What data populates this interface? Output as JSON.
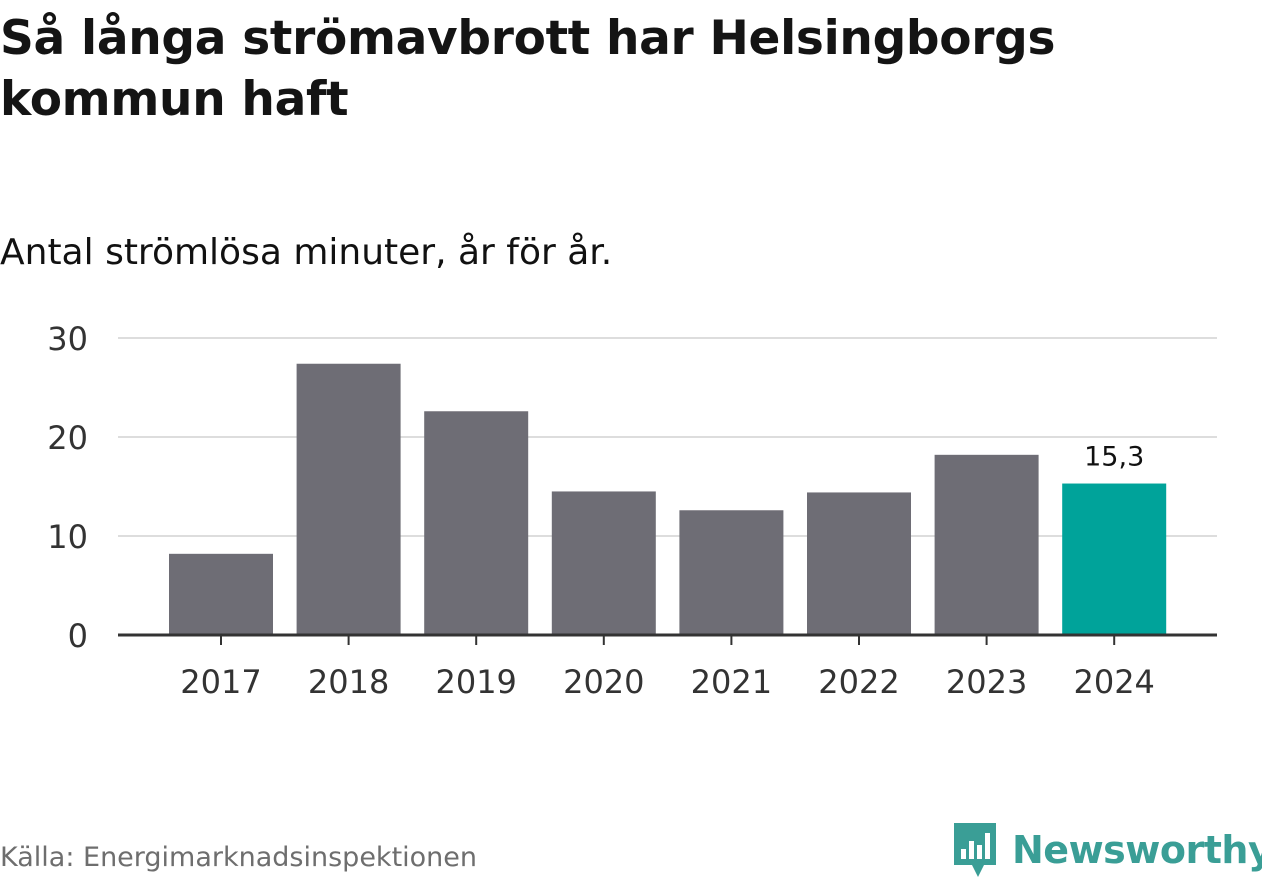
{
  "title": "Så långa strömavbrott har Helsingborgs kommun haft",
  "subtitle": "Antal strömlösa minuter, år för år.",
  "source": "Källa: Energimarknadsinspektionen",
  "brand": {
    "name": "Newsworthy",
    "icon": "bar-chart-speech-bubble-icon",
    "color": "#3a9e96"
  },
  "colors": {
    "bar": "#6e6d75",
    "highlight": "#00a39a",
    "grid": "#dddddd",
    "axis": "#333333"
  },
  "chart_data": {
    "type": "bar",
    "title": "Så långa strömavbrott har Helsingborgs kommun haft",
    "subtitle": "Antal strömlösa minuter, år för år.",
    "xlabel": "",
    "ylabel": "",
    "categories": [
      "2017",
      "2018",
      "2019",
      "2020",
      "2021",
      "2022",
      "2023",
      "2024"
    ],
    "values": [
      8.2,
      27.4,
      22.6,
      14.5,
      12.6,
      14.4,
      18.2,
      15.3
    ],
    "highlight_index": 7,
    "data_labels": [
      {
        "index": 7,
        "text": "15,3"
      }
    ],
    "ylim": [
      0,
      30
    ],
    "yticks": [
      0,
      10,
      20,
      30
    ],
    "grid": true
  }
}
